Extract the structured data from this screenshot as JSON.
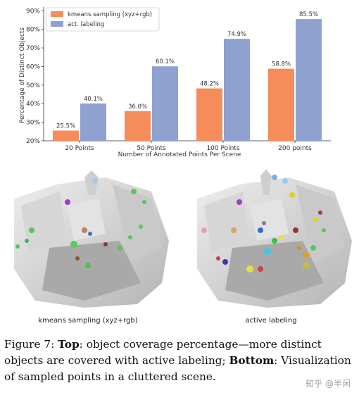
{
  "chart_data": {
    "type": "bar",
    "title": "",
    "xlabel": "Number of Annotated Points Per Scene",
    "ylabel": "Percentage of Distinct Objects",
    "categories": [
      "20 Points",
      "50 Points",
      "100 Points",
      "200 points"
    ],
    "series": [
      {
        "name": "kmeans sampling (xyz+rgb)",
        "values": [
          25.5,
          36.0,
          48.2,
          58.8
        ],
        "labels": [
          "25.5%",
          "36.0%",
          "48.2%",
          "58.8%"
        ],
        "color": "#f58c5a"
      },
      {
        "name": "act. labeling",
        "values": [
          40.1,
          60.1,
          74.9,
          85.5
        ],
        "labels": [
          "40.1%",
          "60.1%",
          "74.9%",
          "85.5%"
        ],
        "color": "#8fa2cf"
      }
    ],
    "ylim": [
      20,
      92
    ],
    "yticks": [
      "20%",
      "30%",
      "40%",
      "50%",
      "60%",
      "70%",
      "80%",
      "90%"
    ],
    "ytick_values": [
      20,
      30,
      40,
      50,
      60,
      70,
      80,
      90
    ],
    "legend_position": "top-left",
    "grid": false
  },
  "scenes": {
    "left_caption": "kmeans sampling (xyz+rgb)",
    "right_caption": "active labeling"
  },
  "figure_caption": {
    "label": "Figure 7:",
    "top_bold": "Top",
    "top_text": ": object coverage percentage—more distinct objects are covered with active labeling; ",
    "bottom_bold": "Bottom",
    "bottom_text": ": Visualization of sampled points in a cluttered scene."
  },
  "watermark": "知乎 @半闲"
}
